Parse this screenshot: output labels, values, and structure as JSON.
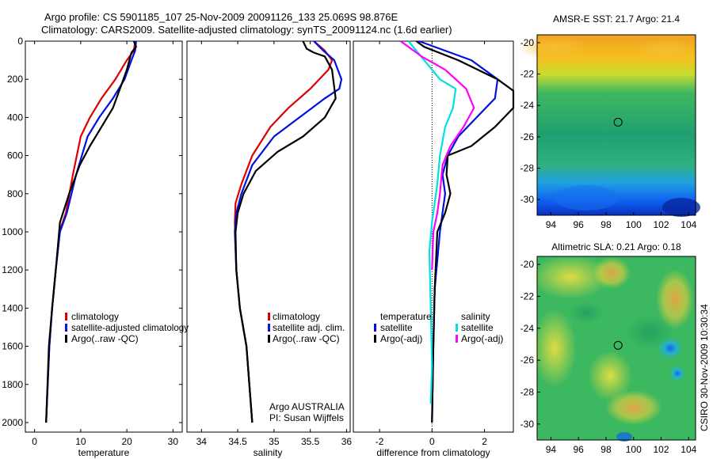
{
  "header": {
    "line1": "Argo profile: CS 5901185_107 25-Nov-2009 20091126_133 25.069S 98.876E",
    "line2": "Climatology: CARS2009. Satellite-adjusted climatology: synTS_20091124.nc (1.6d earlier)"
  },
  "side_label": "CSIRO 30-Nov-2009 10:30:34",
  "chart_data": [
    {
      "type": "line",
      "name": "temperature",
      "xlabel": "temperature",
      "ylabel": "",
      "xlim": [
        -2,
        32
      ],
      "ylim": [
        0,
        2050
      ],
      "y_inverted": true,
      "xticks": [
        0,
        10,
        20,
        30
      ],
      "yticks": [
        0,
        200,
        400,
        600,
        800,
        1000,
        1200,
        1400,
        1600,
        1800,
        2000
      ],
      "legend": {
        "position": "lower-right",
        "entries": [
          "climatology",
          "satellite-adjusted climatology",
          "Argo(..raw -QC)"
        ]
      },
      "annotations": [],
      "series": [
        {
          "name": "climatology",
          "color": "#e00000",
          "x": [
            21.8,
            21.5,
            20,
            17.5,
            14.5,
            12,
            10,
            8.3,
            6.8,
            5.4,
            4.6,
            3.8,
            3.2,
            2.5
          ],
          "y": [
            0,
            50,
            100,
            200,
            300,
            400,
            500,
            700,
            900,
            1000,
            1200,
            1400,
            1600,
            2000
          ]
        },
        {
          "name": "satellite-adjusted climatology",
          "color": "#0010e0",
          "x": [
            22.0,
            21.8,
            21,
            19.5,
            17,
            14,
            11.5,
            9,
            7,
            5.5,
            4.6,
            3.8,
            3.2,
            2.5
          ],
          "y": [
            0,
            50,
            100,
            200,
            300,
            400,
            500,
            700,
            900,
            1000,
            1200,
            1400,
            1600,
            2000
          ]
        },
        {
          "name": "Argo(..raw -QC)",
          "color": "#000000",
          "x": [
            21.5,
            22.0,
            21.0,
            20.0,
            18.5,
            17.0,
            14.5,
            12,
            9.8,
            7.5,
            5.5,
            4.6,
            3.8,
            3.1,
            2.5
          ],
          "y": [
            0,
            30,
            60,
            150,
            250,
            350,
            450,
            550,
            650,
            800,
            950,
            1200,
            1400,
            1600,
            2000
          ]
        }
      ]
    },
    {
      "type": "line",
      "name": "salinity",
      "xlabel": "salinity",
      "ylabel": "",
      "xlim": [
        33.8,
        36.05
      ],
      "ylim": [
        0,
        2050
      ],
      "y_inverted": true,
      "xticks": [
        34,
        34.5,
        35,
        35.5,
        36
      ],
      "yticks": [],
      "legend": {
        "position": "lower-right",
        "entries": [
          "climatology",
          "satellite adj. clim.",
          "Argo(..raw -QC)"
        ]
      },
      "annotations": [
        "Argo AUSTRALIA",
        "PI: Susan Wijffels"
      ],
      "series": [
        {
          "name": "climatology",
          "color": "#e00000",
          "x": [
            35.55,
            35.7,
            35.8,
            35.75,
            35.5,
            35.2,
            34.95,
            34.7,
            34.55,
            34.47,
            34.46,
            34.48,
            34.53,
            34.62,
            34.7
          ],
          "y": [
            0,
            50,
            100,
            150,
            250,
            350,
            450,
            600,
            750,
            850,
            950,
            1200,
            1400,
            1600,
            2000
          ]
        },
        {
          "name": "satellite adj. clim.",
          "color": "#0010e0",
          "x": [
            35.55,
            35.68,
            35.83,
            35.93,
            35.9,
            35.7,
            35.35,
            35.0,
            34.7,
            34.55,
            34.48,
            34.46,
            34.48,
            34.53,
            34.62,
            34.7
          ],
          "y": [
            0,
            50,
            100,
            200,
            250,
            300,
            400,
            500,
            650,
            800,
            900,
            1000,
            1200,
            1400,
            1600,
            2000
          ]
        },
        {
          "name": "Argo(..raw -QC)",
          "color": "#000000",
          "x": [
            35.4,
            35.45,
            35.55,
            35.7,
            35.8,
            35.85,
            35.7,
            35.4,
            35.05,
            34.75,
            34.58,
            34.5,
            34.47,
            34.48,
            34.53,
            34.62,
            34.7
          ],
          "y": [
            0,
            40,
            60,
            80,
            150,
            300,
            400,
            500,
            580,
            680,
            800,
            900,
            1000,
            1200,
            1400,
            1600,
            2000
          ]
        }
      ]
    },
    {
      "type": "line",
      "name": "difference",
      "xlabel": "difference from climatology",
      "ylabel": "",
      "xlim": [
        -3.0,
        3.1
      ],
      "ylim": [
        0,
        2050
      ],
      "y_inverted": true,
      "xticks": [
        -2,
        0,
        2
      ],
      "yticks": [],
      "zero_line": "dotted",
      "legend": {
        "position": "lower-center",
        "entries": [
          "temperature",
          "satellite",
          "Argo(-adj)",
          "salinity",
          "satellite",
          "Argo(-adj)"
        ]
      },
      "annotations": [],
      "series": [
        {
          "name": "temperature satellite",
          "color": "#0010e0",
          "x": [
            -0.5,
            0.3,
            1.5,
            2.5,
            2.4,
            1.7,
            1.0,
            0.6,
            0.4,
            0.5,
            0.3,
            0.1,
            0.05,
            0.0
          ],
          "y": [
            0,
            40,
            100,
            200,
            300,
            400,
            500,
            600,
            700,
            800,
            1000,
            1300,
            1600,
            2000
          ]
        },
        {
          "name": "temperature Argo(-adj)",
          "color": "#000000",
          "x": [
            -0.6,
            -0.3,
            1.0,
            2.5,
            3.1,
            3.1,
            2.4,
            1.5,
            0.6,
            0.55,
            0.7,
            0.5,
            0.2,
            0.1,
            0.05,
            0.0
          ],
          "y": [
            0,
            30,
            100,
            200,
            260,
            350,
            450,
            550,
            600,
            700,
            800,
            900,
            1000,
            1300,
            1600,
            2000
          ]
        },
        {
          "name": "salinity satellite",
          "color": "#00e0e0",
          "x": [
            -0.9,
            -0.6,
            -0.3,
            0.3,
            0.9,
            0.8,
            0.5,
            0.3,
            0.2,
            0.1,
            0.0,
            -0.1,
            -0.05,
            0.0,
            -0.05
          ],
          "y": [
            0,
            50,
            100,
            200,
            250,
            350,
            450,
            600,
            750,
            850,
            950,
            1100,
            1400,
            1700,
            1900
          ]
        },
        {
          "name": "salinity Argo(-adj)",
          "color": "#ff00ff",
          "x": [
            -1.2,
            -0.8,
            -0.4,
            0.5,
            1.3,
            1.6,
            1.2,
            0.7,
            0.4,
            0.3,
            0.2,
            0.05,
            0.0
          ],
          "y": [
            0,
            40,
            80,
            150,
            250,
            350,
            450,
            550,
            650,
            800,
            900,
            1000,
            1200
          ]
        }
      ]
    },
    {
      "type": "heatmap",
      "name": "sst-map",
      "title": "AMSR-E SST: 21.7 Argo: 21.4",
      "xlim": [
        93,
        104.5
      ],
      "ylim": [
        -31,
        -19.5
      ],
      "xticks": [
        94,
        96,
        98,
        100,
        102,
        104
      ],
      "yticks": [
        -20,
        -22,
        -24,
        -26,
        -28,
        -30
      ],
      "marker": {
        "lon": 98.876,
        "lat": -25.069
      }
    },
    {
      "type": "heatmap",
      "name": "sla-map",
      "title": "Altimetric SLA: 0.21 Argo: 0.18",
      "xlim": [
        93,
        104.5
      ],
      "ylim": [
        -31,
        -19.5
      ],
      "xticks": [
        94,
        96,
        98,
        100,
        102,
        104
      ],
      "yticks": [
        -20,
        -22,
        -24,
        -26,
        -28,
        -30
      ],
      "marker": {
        "lon": 98.876,
        "lat": -25.069
      }
    }
  ]
}
